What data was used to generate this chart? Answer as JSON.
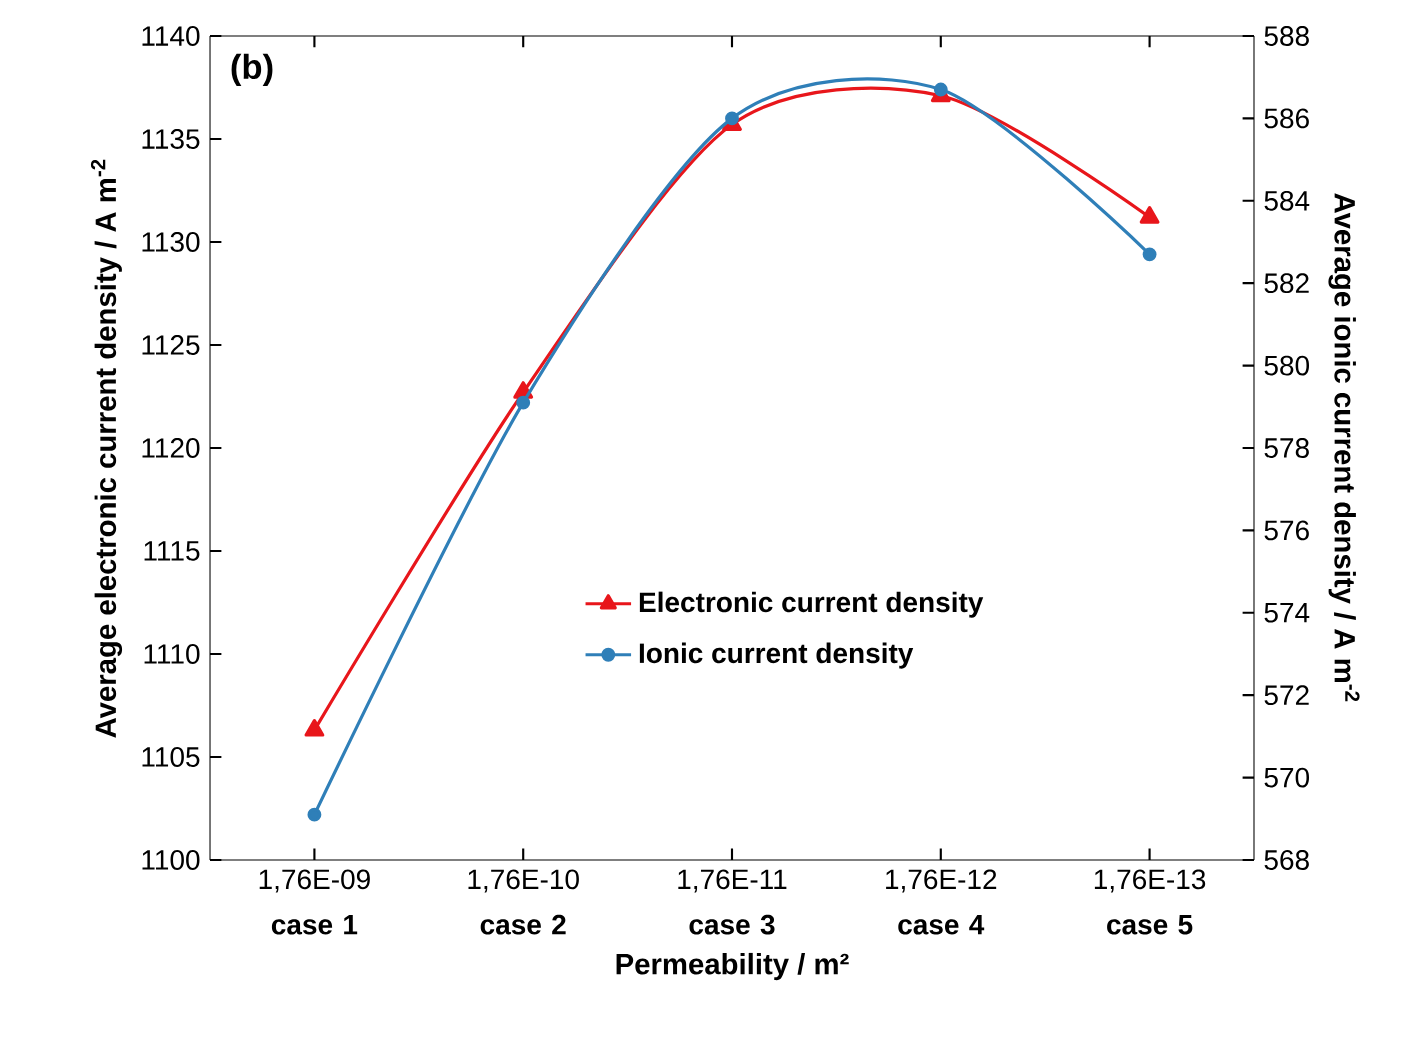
{
  "chart_data": {
    "type": "line",
    "categories": [
      "1,76E-09 **case 1**",
      "1,76E-10 **case 2**",
      "1,76E-11 **case 3**",
      "1,76E-12 **case 4**",
      "1,76E-13 **case 5**"
    ],
    "xlabel": "Permeability / m²",
    "ylabel": "Average electronic current density / A m$^{-2}$",
    "y2label": "Average ionic current density / A m$^{-2}$",
    "series": [
      {
        "name": "Electronic current density",
        "color": "#e8161b",
        "marker": "triangle",
        "values": [
          1106.3,
          1122.7,
          1135.7,
          1137.1,
          1131.2
        ]
      },
      {
        "name": "Ionic current density",
        "color": "#2f7fb8",
        "marker": "circle",
        "axis": "y2",
        "values": [
          569.1,
          579.1,
          586.0,
          586.7,
          582.7
        ]
      }
    ],
    "ylim": [
      1100,
      1140
    ],
    "yticks": [
      1100,
      1105,
      1110,
      1115,
      1120,
      1125,
      1130,
      1135,
      1140
    ],
    "y2lim": [
      568,
      588
    ],
    "y2ticks": [
      568,
      570,
      572,
      574,
      576,
      578,
      580,
      582,
      584,
      586,
      588
    ],
    "annotations": [
      "(b)"
    ],
    "grid": false,
    "legend": "center"
  }
}
